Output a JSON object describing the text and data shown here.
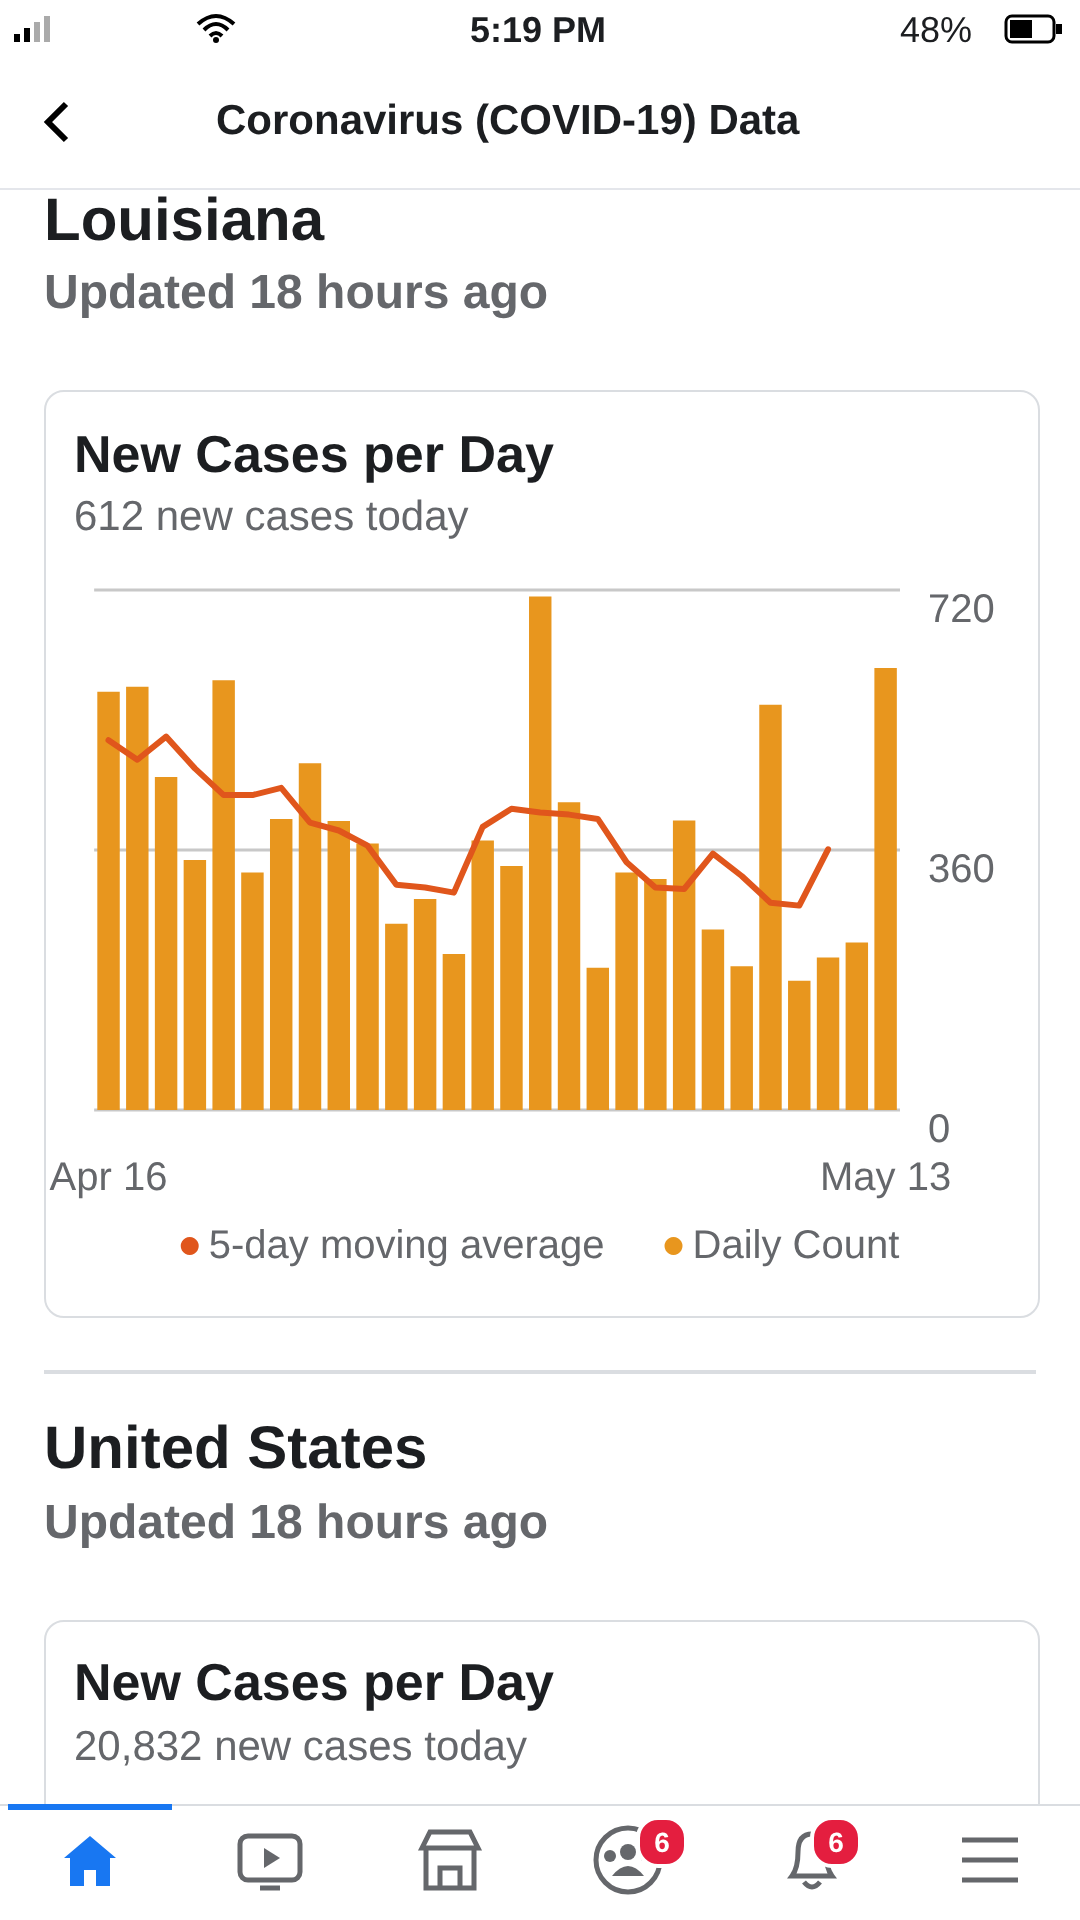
{
  "chart_data": {
    "type": "bar",
    "title": "New Cases per Day",
    "subtitle": "612 new cases today",
    "categories": [
      "Apr 16",
      null,
      null,
      null,
      null,
      null,
      null,
      null,
      null,
      null,
      null,
      null,
      null,
      null,
      null,
      null,
      null,
      null,
      null,
      null,
      null,
      null,
      null,
      null,
      null,
      null,
      null,
      "May 13"
    ],
    "series": [
      {
        "name": "5-day moving average",
        "type": "line",
        "color": "#e0561c",
        "values": [
          512,
          485,
          517,
          473,
          436,
          436,
          446,
          398,
          387,
          366,
          312,
          308,
          301,
          392,
          417,
          412,
          409,
          403,
          343,
          308,
          306,
          355,
          324,
          287,
          283,
          361,
          null,
          null
        ]
      },
      {
        "name": "Daily Count",
        "color": "#e8961e",
        "values": [
          579,
          586,
          461,
          346,
          595,
          329,
          403,
          480,
          400,
          369,
          258,
          292,
          216,
          373,
          338,
          711,
          426,
          197,
          329,
          320,
          401,
          250,
          199,
          561,
          179,
          211,
          232,
          612
        ]
      }
    ],
    "ylim": [
      0,
      720
    ],
    "yticks": [
      0,
      360,
      720
    ],
    "grid": "y",
    "legend": "bottom",
    "marker": "none",
    "line_style": "solid",
    "annotations": [
      "5:19 PM",
      "48%",
      "Coronavirus (COVID-19) Data",
      "Louisiana",
      "Updated 18 hours ago",
      "United States",
      "Updated 18 hours ago",
      "New Cases per Day",
      "20,832 new cases today",
      "6",
      "6"
    ]
  }
}
